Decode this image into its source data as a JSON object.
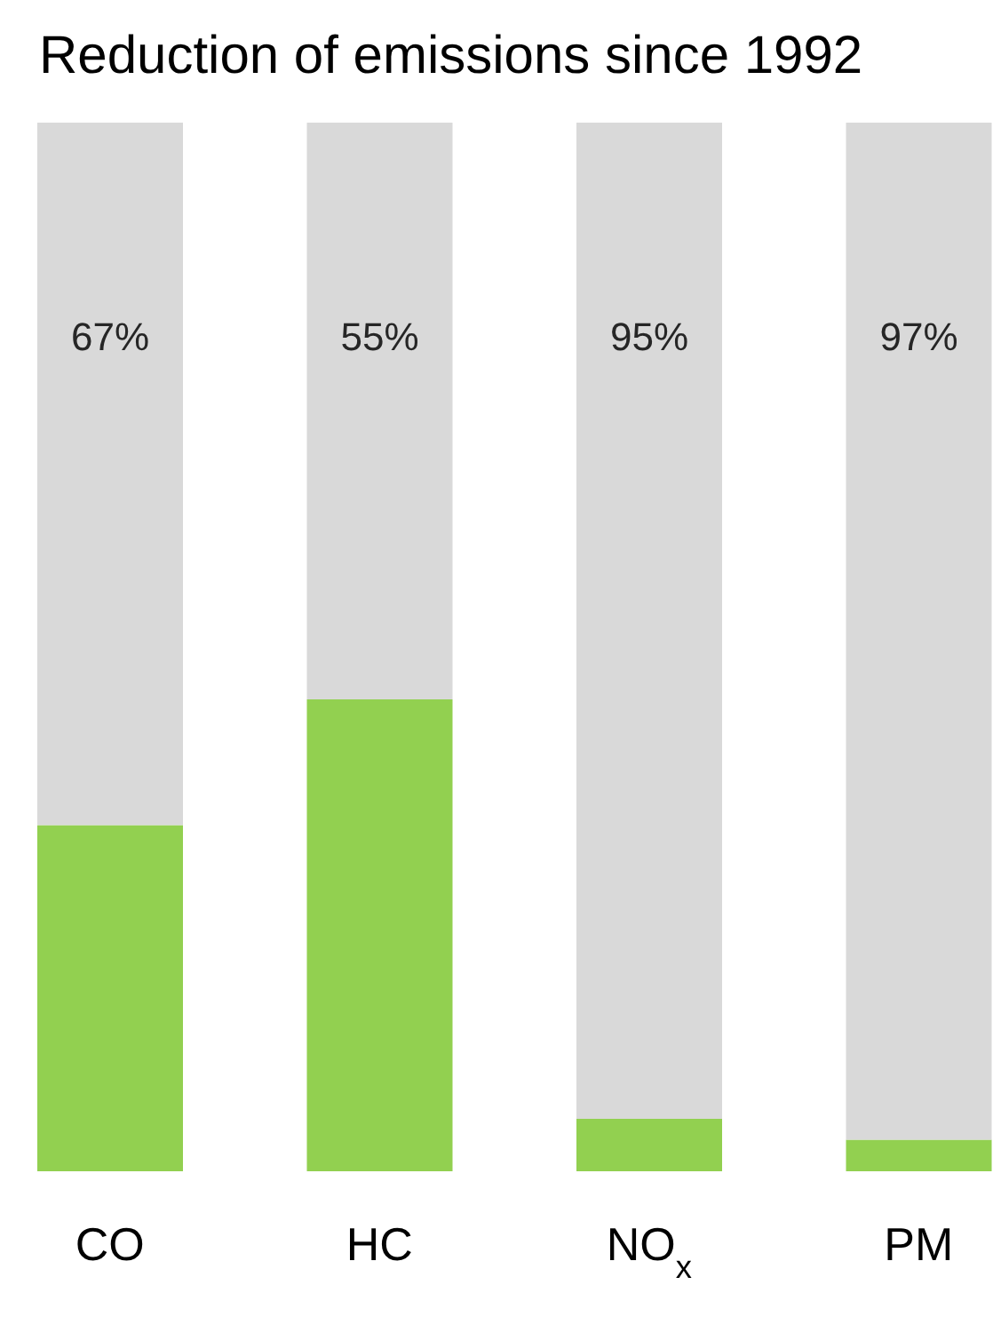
{
  "chart_data": {
    "type": "bar",
    "title": "Reduction of emissions since 1992",
    "categories": [
      "CO",
      "HC",
      "NO$_{x}$",
      "PM"
    ],
    "stacked": true,
    "tick_labels": "x",
    "series": [
      {
        "color": "#92d050",
        "values": [
          33,
          45,
          5,
          3
        ]
      },
      {
        "color": "#d9d9d9",
        "values": [
          67,
          55,
          95,
          97
        ],
        "value_labels": [
          "67%",
          "55%",
          "95%",
          "97%"
        ]
      }
    ]
  }
}
